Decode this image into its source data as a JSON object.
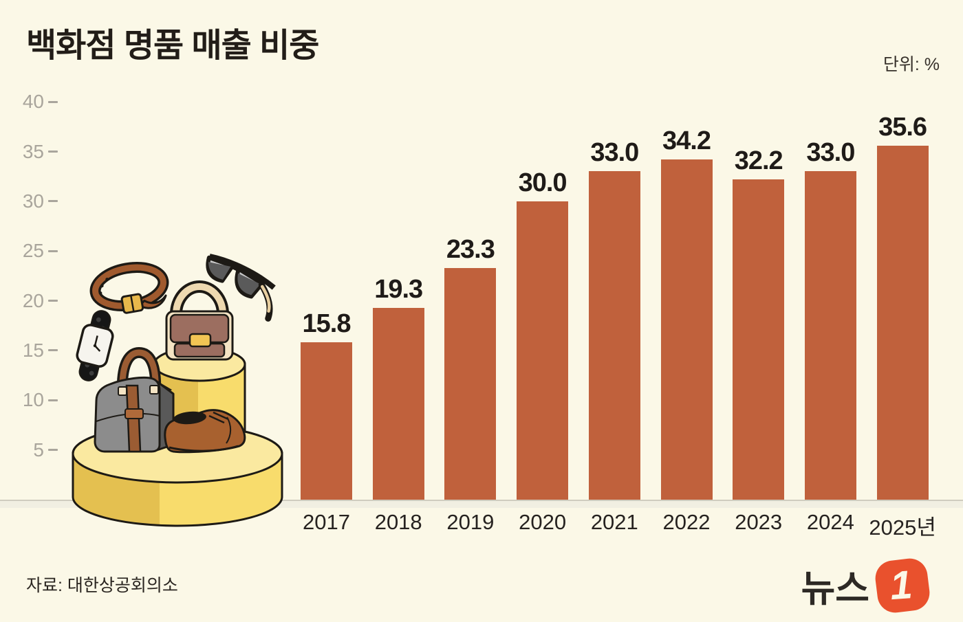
{
  "title": "백화점 명품 매출 비중",
  "unit_label": "단위: %",
  "source": "자료: 대한상공회의소",
  "logo": {
    "text": "뉴스",
    "one": "1",
    "red": "#E9512D"
  },
  "colors": {
    "background": "#FBF8E7",
    "bar": "#C0613C",
    "axis_gray": "#A9A59C",
    "text_dark": "#241F1B",
    "baseline_strip": "#F1EFE2",
    "pedestal_yellow_light": "#F8DC6C",
    "pedestal_yellow_dark": "#E4C050",
    "pedestal_top": "#FAE9A0"
  },
  "chart_data": {
    "type": "bar",
    "title": "백화점 명품 매출 비중",
    "unit": "%",
    "categories": [
      "2017",
      "2018",
      "2019",
      "2020",
      "2021",
      "2022",
      "2023",
      "2024",
      "2025년"
    ],
    "values": [
      15.8,
      19.3,
      23.3,
      30.0,
      33.0,
      34.2,
      32.2,
      33.0,
      35.6
    ],
    "value_labels": [
      "15.8",
      "19.3",
      "23.3",
      "30.0",
      "33.0",
      "34.2",
      "32.2",
      "33.0",
      "35.6"
    ],
    "yticks": [
      40,
      35,
      30,
      25,
      20,
      15,
      10,
      5
    ],
    "ylim": [
      0,
      42
    ],
    "grid": false,
    "legend": null,
    "bar_color": "#C0613C"
  },
  "illustration": {
    "description": "luxury goods displayed on two yellow cylindrical pedestals",
    "items": [
      "belt",
      "sunglasses",
      "wristwatch",
      "handbag",
      "briefcase",
      "dress-shoe",
      "pedestal-large",
      "pedestal-small"
    ]
  }
}
